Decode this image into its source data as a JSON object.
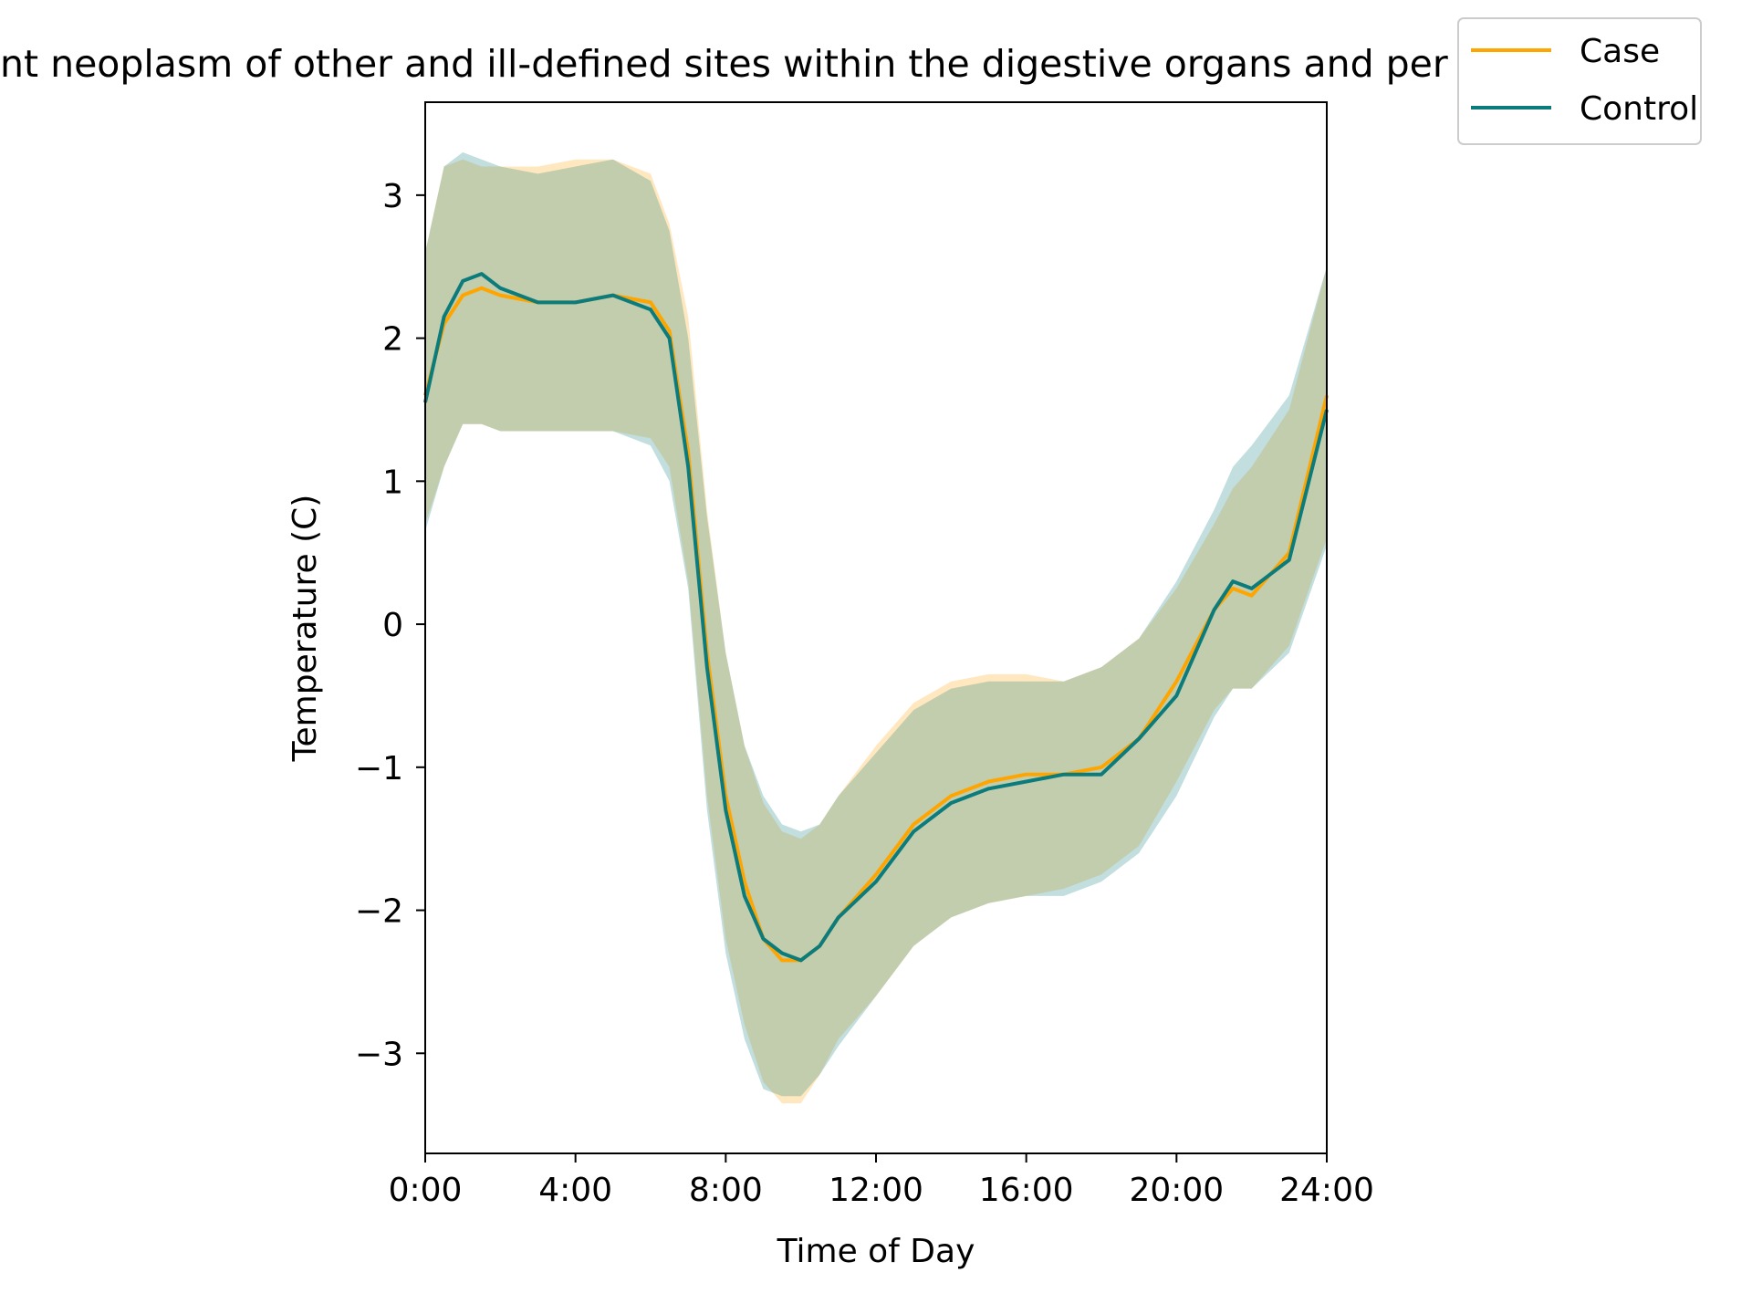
{
  "chart_data": {
    "type": "line",
    "title": "nt neoplasm of other and ill-defined sites within the digestive organs and per",
    "xlabel": "Time of Day",
    "ylabel": "Temperature (C)",
    "xlim": [
      0,
      24
    ],
    "ylim": [
      -3.7,
      3.65
    ],
    "x_ticks": [
      0,
      4,
      8,
      12,
      16,
      20,
      24
    ],
    "x_tick_labels": [
      "0:00",
      "4:00",
      "8:00",
      "12:00",
      "16:00",
      "20:00",
      "24:00"
    ],
    "y_ticks": [
      -3,
      -2,
      -1,
      0,
      1,
      2,
      3
    ],
    "y_tick_labels": [
      "−3",
      "−2",
      "−1",
      "0",
      "1",
      "2",
      "3"
    ],
    "grid": false,
    "legend_position": "top-right, outside plot",
    "x": [
      0,
      0.5,
      1,
      1.5,
      2,
      3,
      4,
      5,
      6,
      6.5,
      7,
      7.5,
      8,
      8.5,
      9,
      9.5,
      10,
      10.5,
      11,
      12,
      13,
      14,
      15,
      16,
      17,
      18,
      19,
      20,
      21,
      21.5,
      22,
      23,
      24
    ],
    "series": [
      {
        "name": "Case",
        "color": "#ffa500",
        "values": [
          1.6,
          2.1,
          2.3,
          2.35,
          2.3,
          2.25,
          2.25,
          2.3,
          2.25,
          2.05,
          1.2,
          -0.2,
          -1.2,
          -1.8,
          -2.2,
          -2.35,
          -2.35,
          -2.25,
          -2.05,
          -1.75,
          -1.4,
          -1.2,
          -1.1,
          -1.05,
          -1.05,
          -1.0,
          -0.8,
          -0.4,
          0.1,
          0.25,
          0.2,
          0.5,
          1.6
        ],
        "upper": [
          2.6,
          3.2,
          3.25,
          3.2,
          3.2,
          3.2,
          3.25,
          3.25,
          3.15,
          2.8,
          2.15,
          0.8,
          -0.2,
          -0.85,
          -1.25,
          -1.45,
          -1.5,
          -1.4,
          -1.2,
          -0.85,
          -0.55,
          -0.4,
          -0.35,
          -0.35,
          -0.4,
          -0.3,
          -0.1,
          0.25,
          0.7,
          0.95,
          1.1,
          1.5,
          2.5
        ],
        "lower": [
          0.7,
          1.1,
          1.4,
          1.4,
          1.35,
          1.35,
          1.35,
          1.35,
          1.3,
          1.1,
          0.3,
          -1.2,
          -2.2,
          -2.8,
          -3.2,
          -3.35,
          -3.35,
          -3.15,
          -2.9,
          -2.6,
          -2.25,
          -2.05,
          -1.95,
          -1.9,
          -1.85,
          -1.75,
          -1.55,
          -1.1,
          -0.6,
          -0.45,
          -0.45,
          -0.15,
          0.6
        ]
      },
      {
        "name": "Control",
        "color": "#0b7b7b",
        "values": [
          1.55,
          2.15,
          2.4,
          2.45,
          2.35,
          2.25,
          2.25,
          2.3,
          2.2,
          2.0,
          1.1,
          -0.3,
          -1.3,
          -1.9,
          -2.2,
          -2.3,
          -2.35,
          -2.25,
          -2.05,
          -1.8,
          -1.45,
          -1.25,
          -1.15,
          -1.1,
          -1.05,
          -1.05,
          -0.8,
          -0.5,
          0.1,
          0.3,
          0.25,
          0.45,
          1.5
        ],
        "upper": [
          2.6,
          3.2,
          3.3,
          3.25,
          3.2,
          3.15,
          3.2,
          3.25,
          3.1,
          2.75,
          2.0,
          0.75,
          -0.2,
          -0.85,
          -1.2,
          -1.4,
          -1.45,
          -1.4,
          -1.2,
          -0.9,
          -0.6,
          -0.45,
          -0.4,
          -0.4,
          -0.4,
          -0.3,
          -0.1,
          0.3,
          0.8,
          1.1,
          1.25,
          1.6,
          2.5
        ],
        "lower": [
          0.65,
          1.1,
          1.4,
          1.4,
          1.35,
          1.35,
          1.35,
          1.35,
          1.25,
          1.0,
          0.25,
          -1.3,
          -2.3,
          -2.9,
          -3.25,
          -3.3,
          -3.3,
          -3.15,
          -2.95,
          -2.6,
          -2.25,
          -2.05,
          -1.95,
          -1.9,
          -1.9,
          -1.8,
          -1.6,
          -1.2,
          -0.65,
          -0.45,
          -0.45,
          -0.2,
          0.55
        ]
      }
    ]
  }
}
